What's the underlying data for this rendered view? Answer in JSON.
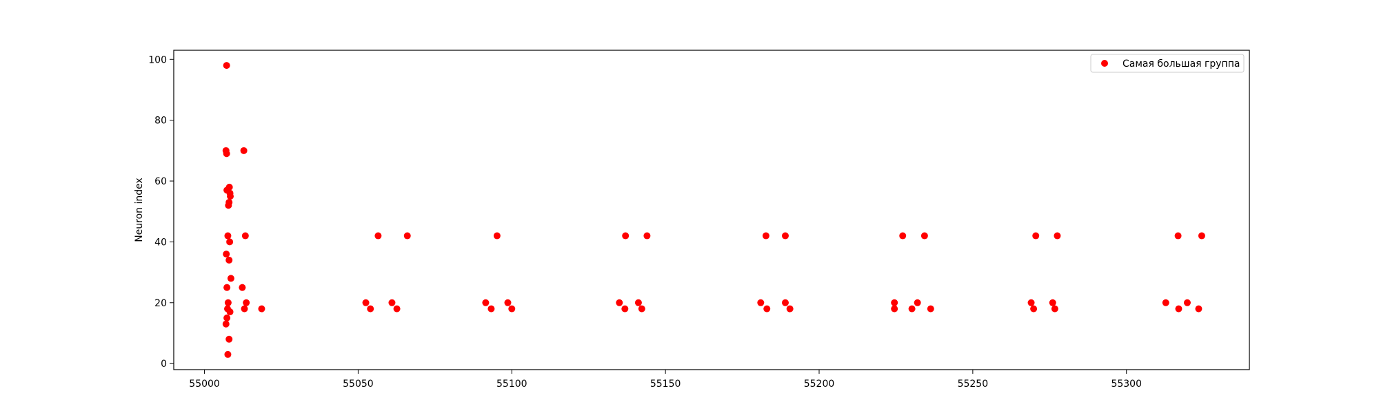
{
  "chart_data": {
    "type": "scatter",
    "title": "",
    "xlabel": "",
    "ylabel": "Neuron index",
    "xlim": [
      54990,
      55340
    ],
    "ylim": [
      -2,
      103
    ],
    "xticks": [
      55000,
      55050,
      55100,
      55150,
      55200,
      55250,
      55300
    ],
    "yticks": [
      0,
      20,
      40,
      60,
      80,
      100
    ],
    "grid": false,
    "legend_position": "top-right",
    "color": "#ff0000",
    "series": [
      {
        "name": "Самая большая группа",
        "color": "#ff0000",
        "points": [
          [
            55007.2,
            98
          ],
          [
            55007.0,
            70
          ],
          [
            55007.2,
            69
          ],
          [
            55007.3,
            57
          ],
          [
            55008.1,
            58
          ],
          [
            55008.3,
            56
          ],
          [
            55008.4,
            55
          ],
          [
            55008.0,
            53
          ],
          [
            55007.8,
            52
          ],
          [
            55007.6,
            42
          ],
          [
            55008.2,
            40
          ],
          [
            55007.1,
            36
          ],
          [
            55008.0,
            34
          ],
          [
            55008.6,
            28
          ],
          [
            55007.3,
            25
          ],
          [
            55007.7,
            20
          ],
          [
            55007.5,
            18
          ],
          [
            55008.3,
            17
          ],
          [
            55007.3,
            15
          ],
          [
            55007.0,
            13
          ],
          [
            55008.0,
            8
          ],
          [
            55007.6,
            3
          ],
          [
            55012.8,
            70
          ],
          [
            55013.3,
            42
          ],
          [
            55012.3,
            25
          ],
          [
            55013.6,
            20
          ],
          [
            55013.0,
            18
          ],
          [
            55018.6,
            18
          ],
          [
            55056.5,
            42
          ],
          [
            55066.0,
            42
          ],
          [
            55052.5,
            20
          ],
          [
            55054.0,
            18
          ],
          [
            55061.0,
            20
          ],
          [
            55062.6,
            18
          ],
          [
            55095.2,
            42
          ],
          [
            55091.5,
            20
          ],
          [
            55093.3,
            18
          ],
          [
            55098.7,
            20
          ],
          [
            55100.0,
            18
          ],
          [
            55137.0,
            42
          ],
          [
            55144.0,
            42
          ],
          [
            55135.0,
            20
          ],
          [
            55136.8,
            18
          ],
          [
            55141.2,
            20
          ],
          [
            55142.3,
            18
          ],
          [
            55182.7,
            42
          ],
          [
            55189.0,
            42
          ],
          [
            55181.0,
            20
          ],
          [
            55183.0,
            18
          ],
          [
            55189.0,
            20
          ],
          [
            55190.5,
            18
          ],
          [
            55227.2,
            42
          ],
          [
            55234.3,
            42
          ],
          [
            55224.5,
            20
          ],
          [
            55224.5,
            18
          ],
          [
            55232.0,
            20
          ],
          [
            55230.2,
            18
          ],
          [
            55236.3,
            18
          ],
          [
            55270.5,
            42
          ],
          [
            55277.5,
            42
          ],
          [
            55269.0,
            20
          ],
          [
            55269.8,
            18
          ],
          [
            55276.0,
            20
          ],
          [
            55276.7,
            18
          ],
          [
            55316.8,
            42
          ],
          [
            55324.5,
            42
          ],
          [
            55312.8,
            20
          ],
          [
            55317.0,
            18
          ],
          [
            55319.8,
            20
          ],
          [
            55323.5,
            18
          ]
        ]
      }
    ]
  }
}
